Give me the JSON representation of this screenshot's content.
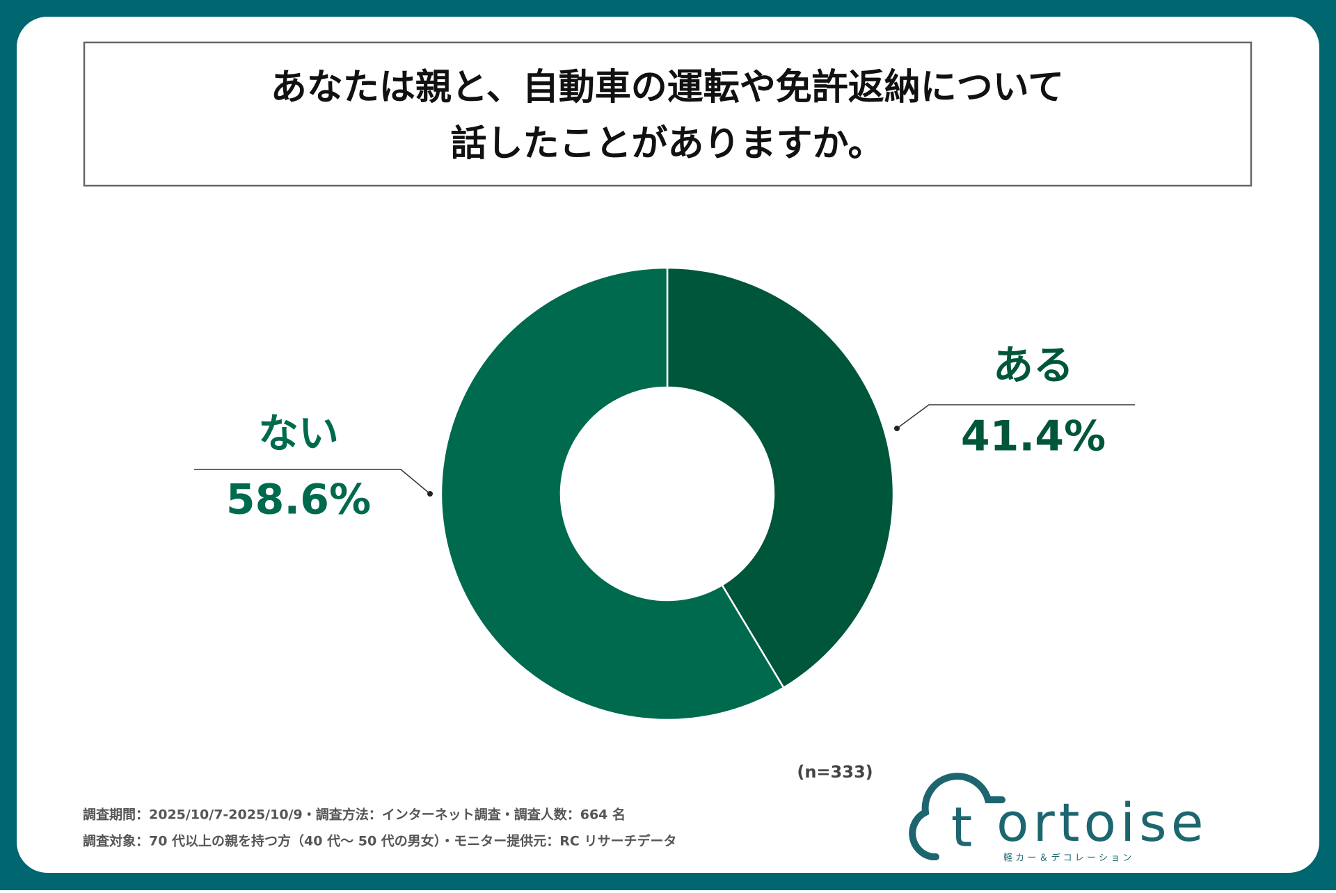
{
  "chart_data": {
    "type": "donut",
    "title": [
      "あなたは親と、自動車の運転や免許返納について",
      "話したことがありますか。"
    ],
    "categories": [
      "ある",
      "ない"
    ],
    "values": [
      41.4,
      58.6
    ],
    "value_labels": [
      "41.4%",
      "58.6%"
    ],
    "colors": [
      "#00563b",
      "#006a4e"
    ],
    "note": "(n=333)",
    "footnotes": [
      "調査期間：2025/10/7-2025/10/9・調査方法：インターネット調査・調査人数：664 名",
      "調査対象：70 代以上の親を持つ方（40 代～ 50 代の男女）・モニター提供元：RC リサーチデータ"
    ]
  },
  "logo": {
    "mark": "t",
    "name": "ortoise",
    "tagline": "軽 カ ー ＆ デ コ レ ー シ ョ ン"
  }
}
